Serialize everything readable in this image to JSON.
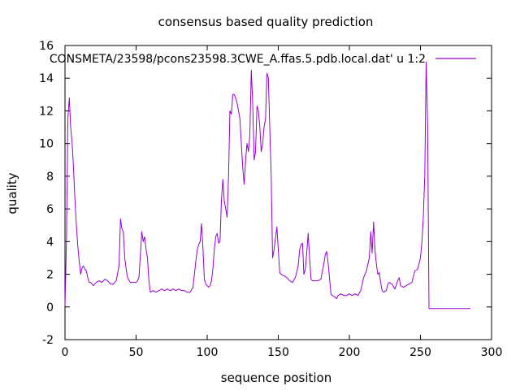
{
  "chart_data": {
    "type": "line",
    "title": "consensus based quality prediction",
    "xlabel": "sequence position",
    "ylabel": "quality",
    "xlim": [
      0,
      300
    ],
    "ylim": [
      -2,
      16
    ],
    "xticks": [
      0,
      50,
      100,
      150,
      200,
      250,
      300
    ],
    "yticks": [
      -2,
      0,
      2,
      4,
      6,
      8,
      10,
      12,
      14,
      16
    ],
    "grid": false,
    "legend_position": "top-right",
    "series": [
      {
        "name": "CONSMETA/23598/pcons23598.3CWE_A.ffas.5.pdb.local.dat' u 1:2",
        "color": "#9400d3",
        "points": [
          [
            0,
            0.1
          ],
          [
            1,
            4.0
          ],
          [
            2,
            11.5
          ],
          [
            3,
            12.8
          ],
          [
            4,
            11.0
          ],
          [
            5,
            10.0
          ],
          [
            6,
            8.5
          ],
          [
            7,
            6.5
          ],
          [
            8,
            5.0
          ],
          [
            9,
            3.7
          ],
          [
            10,
            2.8
          ],
          [
            11,
            2.0
          ],
          [
            12,
            2.4
          ],
          [
            13,
            2.5
          ],
          [
            14,
            2.3
          ],
          [
            15,
            2.2
          ],
          [
            16,
            1.8
          ],
          [
            17,
            1.5
          ],
          [
            18,
            1.5
          ],
          [
            19,
            1.4
          ],
          [
            20,
            1.3
          ],
          [
            22,
            1.5
          ],
          [
            24,
            1.6
          ],
          [
            26,
            1.5
          ],
          [
            28,
            1.7
          ],
          [
            30,
            1.6
          ],
          [
            32,
            1.4
          ],
          [
            34,
            1.4
          ],
          [
            36,
            1.6
          ],
          [
            38,
            2.5
          ],
          [
            39,
            5.4
          ],
          [
            40,
            4.8
          ],
          [
            41,
            4.6
          ],
          [
            42,
            3.0
          ],
          [
            43,
            2.3
          ],
          [
            44,
            1.8
          ],
          [
            46,
            1.5
          ],
          [
            48,
            1.5
          ],
          [
            50,
            1.5
          ],
          [
            51,
            1.6
          ],
          [
            52,
            1.8
          ],
          [
            53,
            3.2
          ],
          [
            54,
            4.6
          ],
          [
            55,
            4.0
          ],
          [
            56,
            4.3
          ],
          [
            57,
            3.5
          ],
          [
            58,
            3.0
          ],
          [
            59,
            1.6
          ],
          [
            60,
            0.9
          ],
          [
            62,
            1.0
          ],
          [
            64,
            0.9
          ],
          [
            66,
            1.0
          ],
          [
            68,
            1.1
          ],
          [
            70,
            1.0
          ],
          [
            72,
            1.1
          ],
          [
            74,
            1.0
          ],
          [
            76,
            1.1
          ],
          [
            78,
            1.0
          ],
          [
            80,
            1.1
          ],
          [
            82,
            1.0
          ],
          [
            84,
            1.0
          ],
          [
            86,
            0.9
          ],
          [
            88,
            0.9
          ],
          [
            90,
            1.2
          ],
          [
            91,
            2.0
          ],
          [
            92,
            2.8
          ],
          [
            93,
            3.5
          ],
          [
            94,
            3.8
          ],
          [
            95,
            4.0
          ],
          [
            96,
            5.1
          ],
          [
            97,
            3.7
          ],
          [
            98,
            1.7
          ],
          [
            99,
            1.4
          ],
          [
            100,
            1.3
          ],
          [
            101,
            1.2
          ],
          [
            102,
            1.3
          ],
          [
            103,
            1.6
          ],
          [
            104,
            2.3
          ],
          [
            105,
            3.5
          ],
          [
            106,
            4.3
          ],
          [
            107,
            4.5
          ],
          [
            108,
            3.9
          ],
          [
            109,
            4.0
          ],
          [
            110,
            6.5
          ],
          [
            111,
            7.8
          ],
          [
            112,
            6.5
          ],
          [
            113,
            6.0
          ],
          [
            114,
            5.5
          ],
          [
            115,
            8.0
          ],
          [
            116,
            12.0
          ],
          [
            117,
            11.8
          ],
          [
            118,
            13.0
          ],
          [
            119,
            13.0
          ],
          [
            120,
            12.8
          ],
          [
            121,
            12.5
          ],
          [
            122,
            12.0
          ],
          [
            123,
            11.5
          ],
          [
            124,
            10.0
          ],
          [
            125,
            8.5
          ],
          [
            126,
            7.5
          ],
          [
            127,
            9.0
          ],
          [
            128,
            10.0
          ],
          [
            129,
            9.5
          ],
          [
            130,
            10.5
          ],
          [
            131,
            14.5
          ],
          [
            132,
            12.5
          ],
          [
            133,
            9.0
          ],
          [
            134,
            9.5
          ],
          [
            135,
            12.3
          ],
          [
            136,
            12.0
          ],
          [
            137,
            11.0
          ],
          [
            138,
            9.5
          ],
          [
            139,
            10.0
          ],
          [
            140,
            11.0
          ],
          [
            141,
            11.5
          ],
          [
            142,
            14.3
          ],
          [
            143,
            14.0
          ],
          [
            144,
            11.0
          ],
          [
            145,
            8.0
          ],
          [
            146,
            3.0
          ],
          [
            147,
            3.5
          ],
          [
            148,
            4.2
          ],
          [
            149,
            4.9
          ],
          [
            150,
            3.5
          ],
          [
            151,
            2.1
          ],
          [
            152,
            2.0
          ],
          [
            154,
            1.9
          ],
          [
            156,
            1.8
          ],
          [
            158,
            1.6
          ],
          [
            160,
            1.5
          ],
          [
            162,
            1.8
          ],
          [
            164,
            2.5
          ],
          [
            165,
            3.5
          ],
          [
            166,
            3.8
          ],
          [
            167,
            3.9
          ],
          [
            168,
            2.0
          ],
          [
            169,
            2.3
          ],
          [
            170,
            3.3
          ],
          [
            171,
            4.5
          ],
          [
            172,
            3.0
          ],
          [
            173,
            1.7
          ],
          [
            174,
            1.6
          ],
          [
            176,
            1.6
          ],
          [
            178,
            1.6
          ],
          [
            180,
            1.7
          ],
          [
            181,
            2.2
          ],
          [
            182,
            2.6
          ],
          [
            183,
            3.2
          ],
          [
            184,
            3.4
          ],
          [
            185,
            2.7
          ],
          [
            186,
            1.8
          ],
          [
            187,
            0.8
          ],
          [
            188,
            0.7
          ],
          [
            190,
            0.6
          ],
          [
            191,
            0.5
          ],
          [
            192,
            0.7
          ],
          [
            194,
            0.8
          ],
          [
            196,
            0.7
          ],
          [
            198,
            0.7
          ],
          [
            200,
            0.8
          ],
          [
            202,
            0.7
          ],
          [
            204,
            0.8
          ],
          [
            206,
            0.7
          ],
          [
            208,
            1.0
          ],
          [
            210,
            1.8
          ],
          [
            212,
            2.2
          ],
          [
            214,
            3.0
          ],
          [
            215,
            4.6
          ],
          [
            216,
            3.3
          ],
          [
            217,
            5.2
          ],
          [
            218,
            3.5
          ],
          [
            219,
            2.6
          ],
          [
            220,
            2.0
          ],
          [
            221,
            2.1
          ],
          [
            222,
            1.5
          ],
          [
            223,
            1.0
          ],
          [
            224,
            0.9
          ],
          [
            226,
            1.0
          ],
          [
            227,
            1.4
          ],
          [
            228,
            1.5
          ],
          [
            230,
            1.4
          ],
          [
            232,
            1.1
          ],
          [
            234,
            1.6
          ],
          [
            235,
            1.8
          ],
          [
            236,
            1.3
          ],
          [
            238,
            1.2
          ],
          [
            240,
            1.3
          ],
          [
            242,
            1.4
          ],
          [
            244,
            1.5
          ],
          [
            246,
            2.2
          ],
          [
            248,
            2.3
          ],
          [
            250,
            3.0
          ],
          [
            251,
            4.0
          ],
          [
            252,
            5.5
          ],
          [
            253,
            8.0
          ],
          [
            254,
            15.0
          ],
          [
            255,
            11.2
          ],
          [
            256,
            -0.1
          ],
          [
            257,
            -0.1
          ],
          [
            260,
            -0.1
          ],
          [
            270,
            -0.1
          ],
          [
            285,
            -0.1
          ]
        ]
      }
    ]
  }
}
